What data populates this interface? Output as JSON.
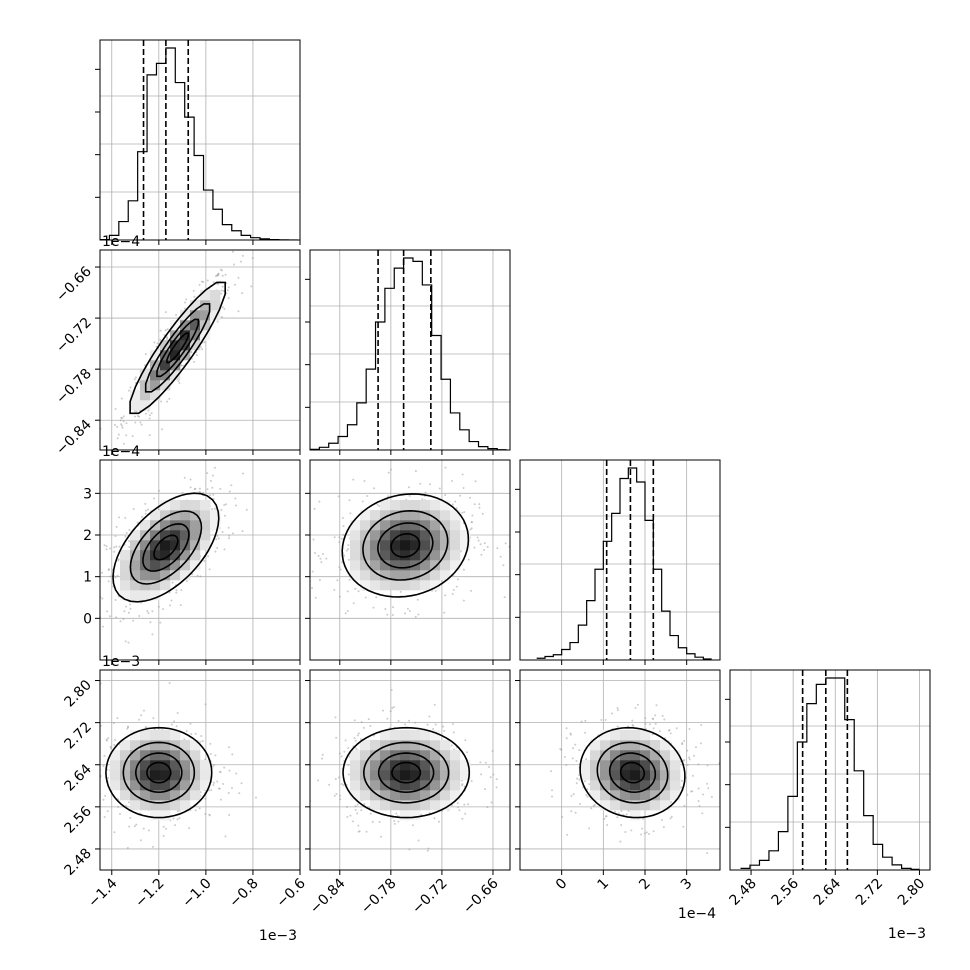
{
  "chart_data": {
    "type": "corner",
    "parameters": [
      {
        "index": 0,
        "range": [
          -1.45,
          -0.6
        ],
        "ticks": [
          -1.4,
          -1.2,
          -1.0,
          -0.8,
          -0.6
        ],
        "tick_labels": [
          "−1.4",
          "−1.2",
          "−1.0",
          "−0.8",
          "−0.6"
        ],
        "offset_label": "1e−3",
        "quantiles": [
          -1.265,
          -1.17,
          -1.075
        ],
        "hist_bins": [
          -1.45,
          -1.41,
          -1.37,
          -1.33,
          -1.29,
          -1.25,
          -1.21,
          -1.17,
          -1.13,
          -1.09,
          -1.05,
          -1.01,
          -0.97,
          -0.93,
          -0.89,
          -0.85,
          -0.81,
          -0.77,
          -0.73,
          -0.69,
          -0.65,
          -0.61
        ],
        "hist_values": [
          0.1,
          1.2,
          4.8,
          10.2,
          23,
          43,
          46,
          50,
          41,
          32,
          22,
          13,
          8,
          4,
          2.4,
          1.2,
          0.6,
          0.3,
          0.1,
          0.05,
          0.02
        ]
      },
      {
        "index": 1,
        "range": [
          -0.875,
          -0.64
        ],
        "ticks": [
          -0.84,
          -0.78,
          -0.72,
          -0.66
        ],
        "tick_labels": [
          "−0.84",
          "−0.78",
          "−0.72",
          "−0.66"
        ],
        "offset_label": "1e−4",
        "quantiles": [
          -0.795,
          -0.765,
          -0.733
        ],
        "hist_bins": [
          -0.875,
          -0.864,
          -0.853,
          -0.842,
          -0.831,
          -0.82,
          -0.809,
          -0.798,
          -0.787,
          -0.776,
          -0.765,
          -0.754,
          -0.743,
          -0.732,
          -0.721,
          -0.71,
          -0.699,
          -0.688,
          -0.677,
          -0.666,
          -0.655,
          -0.644
        ],
        "hist_values": [
          0.2,
          0.8,
          2.0,
          4.0,
          7.5,
          14,
          24,
          38,
          48,
          54,
          57,
          56,
          49,
          34,
          21,
          11,
          6,
          2.5,
          1.0,
          0.4,
          0.1
        ]
      },
      {
        "index": 2,
        "range": [
          -1.0,
          3.8
        ],
        "ticks": [
          0,
          1,
          2,
          3
        ],
        "tick_labels": [
          "0",
          "1",
          "2",
          "3"
        ],
        "offset_label": "1e−4",
        "quantiles": [
          1.08,
          1.65,
          2.2
        ],
        "hist_bins": [
          -0.6,
          -0.4,
          -0.2,
          0.0,
          0.2,
          0.4,
          0.6,
          0.8,
          1.0,
          1.2,
          1.4,
          1.6,
          1.8,
          2.0,
          2.2,
          2.4,
          2.6,
          2.8,
          3.0,
          3.2,
          3.4,
          3.6
        ],
        "hist_values": [
          0.5,
          1.0,
          1.5,
          3.0,
          5.0,
          10,
          17,
          26,
          34,
          42,
          52,
          55,
          51,
          40,
          26,
          14,
          7,
          3.5,
          1.8,
          0.8,
          0.3
        ]
      },
      {
        "index": 3,
        "range": [
          2.44,
          2.82
        ],
        "ticks": [
          2.48,
          2.56,
          2.64,
          2.72,
          2.8
        ],
        "tick_labels": [
          "2.48",
          "2.56",
          "2.64",
          "2.72",
          "2.80"
        ],
        "offset_label": "1e−3",
        "quantiles": [
          2.578,
          2.622,
          2.663
        ],
        "hist_bins": [
          2.46,
          2.478,
          2.496,
          2.514,
          2.532,
          2.55,
          2.568,
          2.586,
          2.604,
          2.622,
          2.64,
          2.658,
          2.676,
          2.694,
          2.712,
          2.73,
          2.748,
          2.766,
          2.784,
          2.8
        ],
        "hist_values": [
          0.5,
          1.5,
          3.0,
          6.0,
          12,
          23,
          40,
          52,
          58,
          60,
          60,
          47,
          31,
          17,
          8,
          4,
          1.6,
          0.5,
          0.2
        ]
      }
    ],
    "pairs": [
      {
        "x": 0,
        "y": 1,
        "mean": [
          -1.12,
          -0.755
        ],
        "sd": [
          0.092,
          0.035
        ],
        "rho": 0.91
      },
      {
        "x": 0,
        "y": 2,
        "mean": [
          -1.17,
          1.7
        ],
        "sd": [
          0.1,
          0.58
        ],
        "rho": 0.55
      },
      {
        "x": 1,
        "y": 2,
        "mean": [
          -0.763,
          1.75
        ],
        "sd": [
          0.033,
          0.55
        ],
        "rho": 0.12
      },
      {
        "x": 0,
        "y": 3,
        "mean": [
          -1.2,
          2.625
        ],
        "sd": [
          0.1,
          0.038
        ],
        "rho": 0.0
      },
      {
        "x": 1,
        "y": 3,
        "mean": [
          -0.762,
          2.625
        ],
        "sd": [
          0.033,
          0.038
        ],
        "rho": 0.0
      },
      {
        "x": 2,
        "y": 3,
        "mean": [
          1.7,
          2.625
        ],
        "sd": [
          0.56,
          0.038
        ],
        "rho": -0.08
      }
    ],
    "colors": {
      "axes": "#000000",
      "grid": "#b0b0b0",
      "scatter": "#9a9a9a",
      "contour": "#000000"
    }
  }
}
